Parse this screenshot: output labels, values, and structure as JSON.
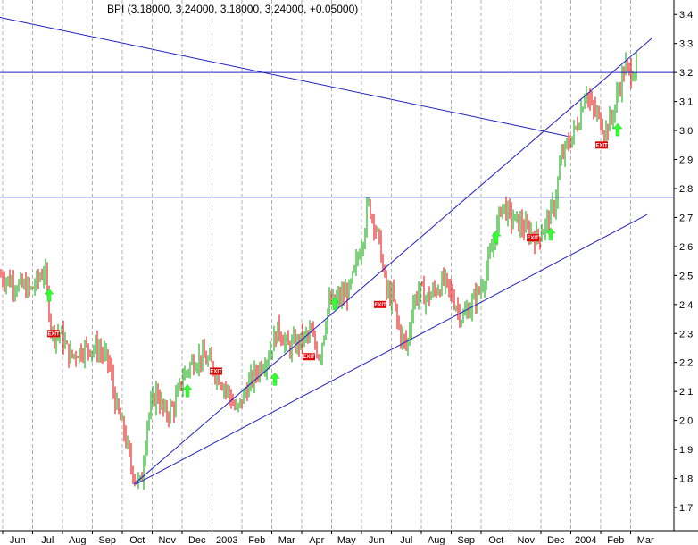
{
  "chart_data": {
    "type": "candlestick",
    "title": "BPI (3.18000, 3.24000, 3.18000, 3.24000, +0.05000)",
    "xlabel": "",
    "ylabel": "",
    "ylim": [
      1.62,
      3.45
    ],
    "ytick_values": [
      1.7,
      1.8,
      1.9,
      2.0,
      2.1,
      2.2,
      2.3,
      2.4,
      2.5,
      2.6,
      2.7,
      2.8,
      2.9,
      3.0,
      3.1,
      3.2,
      3.3,
      3.4
    ],
    "yticks": [
      "1.7",
      "1.8",
      "1.9",
      "2.0",
      "2.1",
      "2.2",
      "2.3",
      "2.4",
      "2.5",
      "2.6",
      "2.7",
      "2.8",
      "2.9",
      "3.0",
      "3.1",
      "3.2",
      "3.3",
      "3.4"
    ],
    "month_labels": [
      "Jun",
      "Jul",
      "Aug",
      "Sep",
      "Oct",
      "Nov",
      "Dec",
      "2003",
      "Feb",
      "Mar",
      "Apr",
      "May",
      "Jun",
      "Jul",
      "Aug",
      "Sep",
      "Oct",
      "Nov",
      "Dec",
      "2004",
      "Feb",
      "Mar"
    ],
    "grid": "vertical dashed lines at month boundaries",
    "colors": {
      "up": "#00a000",
      "down": "#e00000",
      "lines": "#2020c0",
      "grid": "#b0b0b0",
      "arrow": "#33ff33",
      "exit": "#e00000"
    },
    "price_path": [
      [
        0,
        2.5
      ],
      [
        18,
        2.47
      ],
      [
        35,
        2.45
      ],
      [
        50,
        2.52
      ],
      [
        58,
        2.3
      ],
      [
        68,
        2.3
      ],
      [
        78,
        2.22
      ],
      [
        95,
        2.25
      ],
      [
        110,
        2.25
      ],
      [
        122,
        2.2
      ],
      [
        130,
        2.05
      ],
      [
        140,
        1.95
      ],
      [
        146,
        1.85
      ],
      [
        152,
        1.8
      ],
      [
        158,
        1.78
      ],
      [
        165,
        2.0
      ],
      [
        175,
        2.1
      ],
      [
        185,
        2.02
      ],
      [
        195,
        2.05
      ],
      [
        205,
        2.15
      ],
      [
        215,
        2.2
      ],
      [
        225,
        2.22
      ],
      [
        235,
        2.2
      ],
      [
        245,
        2.15
      ],
      [
        255,
        2.1
      ],
      [
        265,
        2.03
      ],
      [
        278,
        2.12
      ],
      [
        290,
        2.18
      ],
      [
        300,
        2.22
      ],
      [
        312,
        2.32
      ],
      [
        322,
        2.25
      ],
      [
        335,
        2.27
      ],
      [
        348,
        2.3
      ],
      [
        358,
        2.22
      ],
      [
        368,
        2.4
      ],
      [
        380,
        2.42
      ],
      [
        392,
        2.45
      ],
      [
        400,
        2.55
      ],
      [
        408,
        2.65
      ],
      [
        412,
        2.75
      ],
      [
        418,
        2.7
      ],
      [
        426,
        2.6
      ],
      [
        432,
        2.45
      ],
      [
        440,
        2.42
      ],
      [
        448,
        2.3
      ],
      [
        456,
        2.25
      ],
      [
        462,
        2.4
      ],
      [
        470,
        2.45
      ],
      [
        478,
        2.42
      ],
      [
        488,
        2.45
      ],
      [
        498,
        2.48
      ],
      [
        508,
        2.42
      ],
      [
        518,
        2.35
      ],
      [
        528,
        2.4
      ],
      [
        538,
        2.45
      ],
      [
        548,
        2.55
      ],
      [
        556,
        2.65
      ],
      [
        562,
        2.75
      ],
      [
        572,
        2.7
      ],
      [
        582,
        2.68
      ],
      [
        592,
        2.65
      ],
      [
        602,
        2.63
      ],
      [
        612,
        2.68
      ],
      [
        622,
        2.75
      ],
      [
        628,
        2.9
      ],
      [
        636,
        2.95
      ],
      [
        644,
        3.0
      ],
      [
        650,
        3.05
      ],
      [
        656,
        3.15
      ],
      [
        662,
        3.08
      ],
      [
        670,
        3.05
      ],
      [
        678,
        3.0
      ],
      [
        686,
        3.05
      ],
      [
        694,
        3.15
      ],
      [
        700,
        3.22
      ],
      [
        706,
        3.2
      ],
      [
        714,
        3.22
      ]
    ],
    "trend_lines": [
      {
        "x": [
          0,
          636
        ],
        "y": [
          3.39,
          2.98
        ]
      },
      {
        "x": [
          150,
          731
        ],
        "y": [
          1.78,
          3.32
        ]
      },
      {
        "x": [
          152,
          725
        ],
        "y": [
          1.78,
          2.71
        ]
      }
    ],
    "horizontal_lines": [
      3.2,
      2.77
    ],
    "buy_arrows": [
      [
        55,
        2.43
      ],
      [
        210,
        2.1
      ],
      [
        308,
        2.14
      ],
      [
        375,
        2.4
      ],
      [
        556,
        2.63
      ],
      [
        617,
        2.64
      ],
      [
        692,
        3.0
      ]
    ],
    "exit_labels": [
      [
        60,
        2.3
      ],
      [
        242,
        2.17
      ],
      [
        346,
        2.22
      ],
      [
        426,
        2.4
      ],
      [
        597,
        2.63
      ],
      [
        674,
        2.95
      ]
    ],
    "exit_text": "EXIT"
  }
}
